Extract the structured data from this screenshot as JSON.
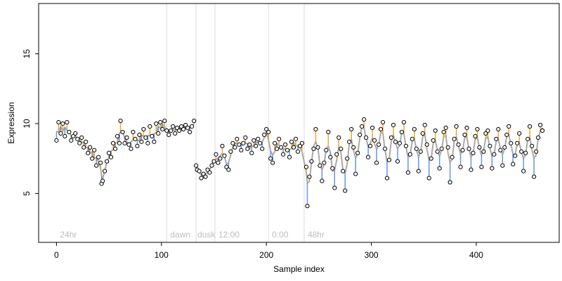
{
  "chart_data": {
    "type": "scatter",
    "xlabel": "Sample index",
    "ylabel": "Expression",
    "xlim": [
      -17,
      479
    ],
    "ylim": [
      1.5,
      18.6
    ],
    "x_ticks": [
      0,
      100,
      200,
      300,
      400
    ],
    "y_ticks": [
      5,
      10,
      15
    ],
    "grid": false,
    "legend": "none",
    "phase_boundaries": [
      105,
      133,
      151,
      202,
      236
    ],
    "phase_labels": [
      {
        "label": "24hr",
        "x": 2
      },
      {
        "label": "dawn",
        "x": 107
      },
      {
        "label": "dusk",
        "x": 133
      },
      {
        "label": "12:00",
        "x": 153
      },
      {
        "label": "0:00",
        "x": 204
      },
      {
        "label": "48hr",
        "x": 238
      }
    ],
    "colors": {
      "points_fill": "#ffffff",
      "points_stroke": "#000000",
      "trend_line": "#a9a9a9",
      "residual_up": "#f5a623",
      "residual_down": "#6495ed",
      "phase_line": "#dcdcdc",
      "phase_label": "#bdbdbd"
    },
    "series": [
      {
        "values": [
          [
            0,
            8.8
          ],
          [
            2,
            10.1
          ],
          [
            4,
            9.3
          ],
          [
            6,
            10.0
          ],
          [
            8,
            9.1
          ],
          [
            10,
            10.1
          ],
          [
            12,
            9.4
          ],
          [
            14,
            8.8
          ],
          [
            16,
            9.1
          ],
          [
            18,
            9.3
          ],
          [
            20,
            8.9
          ],
          [
            22,
            8.6
          ],
          [
            24,
            9.0
          ],
          [
            26,
            8.3
          ],
          [
            28,
            8.7
          ],
          [
            30,
            7.9
          ],
          [
            32,
            8.3
          ],
          [
            34,
            7.5
          ],
          [
            36,
            8.1
          ],
          [
            38,
            7.0
          ],
          [
            40,
            7.6
          ],
          [
            42,
            7.2
          ],
          [
            43,
            5.7
          ],
          [
            44,
            5.9
          ],
          [
            46,
            6.6
          ],
          [
            48,
            7.3
          ],
          [
            50,
            7.9
          ],
          [
            52,
            7.6
          ],
          [
            54,
            8.6
          ],
          [
            56,
            8.2
          ],
          [
            58,
            9.1
          ],
          [
            60,
            8.6
          ],
          [
            61,
            10.2
          ],
          [
            63,
            9.4
          ],
          [
            65,
            8.6
          ],
          [
            67,
            9.0
          ],
          [
            69,
            8.5
          ],
          [
            71,
            8.2
          ],
          [
            73,
            9.4
          ],
          [
            75,
            8.9
          ],
          [
            77,
            8.4
          ],
          [
            79,
            9.2
          ],
          [
            81,
            8.7
          ],
          [
            83,
            9.6
          ],
          [
            85,
            9.0
          ],
          [
            87,
            8.6
          ],
          [
            89,
            9.8
          ],
          [
            91,
            9.1
          ],
          [
            93,
            8.7
          ],
          [
            95,
            10.0
          ],
          [
            97,
            9.3
          ],
          [
            99,
            10.1
          ],
          [
            101,
            9.6
          ],
          [
            103,
            10.2
          ],
          [
            105,
            9.5
          ],
          [
            107,
            9.2
          ],
          [
            109,
            9.5
          ],
          [
            111,
            9.8
          ],
          [
            113,
            9.3
          ],
          [
            115,
            9.7
          ],
          [
            117,
            9.5
          ],
          [
            119,
            9.8
          ],
          [
            121,
            9.6
          ],
          [
            123,
            9.9
          ],
          [
            125,
            9.7
          ],
          [
            127,
            9.4
          ],
          [
            129,
            9.8
          ],
          [
            131,
            10.2
          ],
          [
            133,
            7.0
          ],
          [
            134,
            6.7
          ],
          [
            136,
            6.6
          ],
          [
            138,
            6.1
          ],
          [
            140,
            6.4
          ],
          [
            142,
            6.2
          ],
          [
            144,
            6.7
          ],
          [
            146,
            6.5
          ],
          [
            148,
            7.0
          ],
          [
            150,
            7.3
          ],
          [
            152,
            7.8
          ],
          [
            154,
            7.2
          ],
          [
            156,
            7.5
          ],
          [
            158,
            8.4
          ],
          [
            160,
            7.7
          ],
          [
            162,
            6.9
          ],
          [
            164,
            6.7
          ],
          [
            166,
            8.0
          ],
          [
            168,
            8.6
          ],
          [
            170,
            8.3
          ],
          [
            172,
            8.9
          ],
          [
            174,
            8.5
          ],
          [
            176,
            8.1
          ],
          [
            178,
            8.6
          ],
          [
            180,
            9.0
          ],
          [
            182,
            8.2
          ],
          [
            184,
            8.5
          ],
          [
            186,
            7.9
          ],
          [
            188,
            8.8
          ],
          [
            190,
            8.4
          ],
          [
            192,
            8.9
          ],
          [
            194,
            8.6
          ],
          [
            196,
            8.2
          ],
          [
            198,
            9.2
          ],
          [
            200,
            9.6
          ],
          [
            202,
            9.4
          ],
          [
            204,
            7.5
          ],
          [
            206,
            7.2
          ],
          [
            208,
            8.6
          ],
          [
            210,
            8.2
          ],
          [
            212,
            8.9
          ],
          [
            214,
            8.3
          ],
          [
            216,
            7.8
          ],
          [
            218,
            8.5
          ],
          [
            220,
            8.1
          ],
          [
            222,
            7.6
          ],
          [
            224,
            8.7
          ],
          [
            226,
            8.3
          ],
          [
            228,
            8.9
          ],
          [
            230,
            8.0
          ],
          [
            232,
            8.4
          ],
          [
            234,
            8.6
          ],
          [
            238,
            6.9
          ],
          [
            239,
            4.1
          ],
          [
            241,
            6.2
          ],
          [
            243,
            7.3
          ],
          [
            245,
            8.2
          ],
          [
            247,
            9.6
          ],
          [
            249,
            8.3
          ],
          [
            251,
            7.0
          ],
          [
            253,
            5.9
          ],
          [
            255,
            7.2
          ],
          [
            257,
            8.1
          ],
          [
            259,
            9.4
          ],
          [
            261,
            7.6
          ],
          [
            263,
            6.8
          ],
          [
            265,
            5.4
          ],
          [
            267,
            7.8
          ],
          [
            269,
            9.0
          ],
          [
            271,
            8.2
          ],
          [
            273,
            6.6
          ],
          [
            275,
            5.2
          ],
          [
            277,
            7.5
          ],
          [
            279,
            8.7
          ],
          [
            281,
            9.6
          ],
          [
            283,
            8.3
          ],
          [
            285,
            6.4
          ],
          [
            287,
            7.9
          ],
          [
            289,
            9.2
          ],
          [
            291,
            9.8
          ],
          [
            293,
            10.3
          ],
          [
            295,
            9.0
          ],
          [
            297,
            7.6
          ],
          [
            299,
            8.4
          ],
          [
            301,
            9.7
          ],
          [
            303,
            8.8
          ],
          [
            305,
            7.2
          ],
          [
            307,
            8.5
          ],
          [
            309,
            9.6
          ],
          [
            311,
            10.1
          ],
          [
            313,
            8.2
          ],
          [
            315,
            6.1
          ],
          [
            317,
            7.4
          ],
          [
            319,
            9.0
          ],
          [
            321,
            9.9
          ],
          [
            323,
            8.7
          ],
          [
            325,
            7.3
          ],
          [
            327,
            8.6
          ],
          [
            329,
            9.4
          ],
          [
            331,
            10.1
          ],
          [
            333,
            8.4
          ],
          [
            335,
            6.5
          ],
          [
            337,
            7.8
          ],
          [
            339,
            8.9
          ],
          [
            341,
            9.6
          ],
          [
            343,
            8.2
          ],
          [
            345,
            6.6
          ],
          [
            347,
            8.0
          ],
          [
            349,
            9.3
          ],
          [
            351,
            9.9
          ],
          [
            353,
            8.5
          ],
          [
            355,
            6.1
          ],
          [
            357,
            7.5
          ],
          [
            359,
            8.8
          ],
          [
            361,
            9.5
          ],
          [
            363,
            8.0
          ],
          [
            365,
            6.8
          ],
          [
            367,
            8.2
          ],
          [
            369,
            9.4
          ],
          [
            371,
            9.7
          ],
          [
            373,
            8.3
          ],
          [
            375,
            5.8
          ],
          [
            377,
            7.6
          ],
          [
            379,
            8.9
          ],
          [
            381,
            9.8
          ],
          [
            383,
            8.5
          ],
          [
            385,
            6.9
          ],
          [
            387,
            8.1
          ],
          [
            389,
            9.2
          ],
          [
            391,
            9.7
          ],
          [
            393,
            8.2
          ],
          [
            395,
            6.7
          ],
          [
            397,
            7.9
          ],
          [
            399,
            9.1
          ],
          [
            401,
            9.6
          ],
          [
            403,
            8.3
          ],
          [
            405,
            6.9
          ],
          [
            407,
            8.0
          ],
          [
            409,
            9.3
          ],
          [
            411,
            9.5
          ],
          [
            413,
            8.4
          ],
          [
            415,
            6.8
          ],
          [
            417,
            7.8
          ],
          [
            419,
            8.9
          ],
          [
            421,
            9.6
          ],
          [
            423,
            8.1
          ],
          [
            425,
            7.0
          ],
          [
            427,
            8.3
          ],
          [
            429,
            9.2
          ],
          [
            431,
            9.8
          ],
          [
            433,
            8.6
          ],
          [
            435,
            7.1
          ],
          [
            437,
            7.7
          ],
          [
            439,
            8.6
          ],
          [
            441,
            9.3
          ],
          [
            443,
            8.0
          ],
          [
            445,
            6.6
          ],
          [
            447,
            7.9
          ],
          [
            449,
            8.9
          ],
          [
            451,
            9.8
          ],
          [
            453,
            8.4
          ],
          [
            455,
            6.2
          ],
          [
            457,
            8.0
          ],
          [
            459,
            9.0
          ],
          [
            461,
            9.9
          ],
          [
            463,
            9.5
          ]
        ]
      }
    ]
  }
}
